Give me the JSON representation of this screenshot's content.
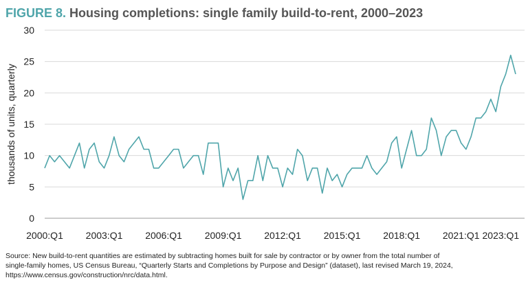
{
  "chart_data": {
    "type": "line",
    "title_label": "FIGURE 8.",
    "title": "Housing completions: single family build-to-rent, 2000–2023",
    "y_label": "thousands of units, quarterly",
    "source": [
      "Source: New build-to-rent quantities are estimated by subtracting homes built for sale by contractor or by owner from the total number of",
      "single-family homes, US Census Bureau, “Quarterly Starts and Completions by Purpose and Design” (dataset), last revised March 19, 2024,",
      "https://www.census.gov/construction/nrc/data.html."
    ],
    "categories": [
      "2000:Q1",
      null,
      null,
      null,
      null,
      null,
      null,
      null,
      null,
      null,
      null,
      null,
      "2003:Q1",
      null,
      null,
      null,
      null,
      null,
      null,
      null,
      null,
      null,
      null,
      null,
      "2006:Q1",
      null,
      null,
      null,
      null,
      null,
      null,
      null,
      null,
      null,
      null,
      null,
      "2009:Q1",
      null,
      null,
      null,
      null,
      null,
      null,
      null,
      null,
      null,
      null,
      null,
      "2012:Q1",
      null,
      null,
      null,
      null,
      null,
      null,
      null,
      null,
      null,
      null,
      null,
      "2015:Q1",
      null,
      null,
      null,
      null,
      null,
      null,
      null,
      null,
      null,
      null,
      null,
      "2018:Q1",
      null,
      null,
      null,
      null,
      null,
      null,
      null,
      null,
      null,
      null,
      null,
      "2021:Q1",
      null,
      null,
      null,
      null,
      null,
      null,
      null,
      "2023:Q1",
      null,
      null,
      null
    ],
    "series": [
      {
        "name": "Single family build-to-rent",
        "color": "#4fa5aa",
        "values": [
          8,
          10,
          9,
          10,
          9,
          8,
          10,
          12,
          8,
          11,
          12,
          9,
          8,
          10,
          13,
          10,
          9,
          11,
          12,
          13,
          11,
          11,
          8,
          8,
          9,
          10,
          11,
          11,
          8,
          9,
          10,
          10,
          7,
          12,
          12,
          12,
          5,
          8,
          6,
          8,
          3,
          6,
          6,
          10,
          6,
          10,
          8,
          8,
          5,
          8,
          7,
          11,
          10,
          6,
          8,
          8,
          4,
          8,
          6,
          7,
          5,
          7,
          8,
          8,
          8,
          10,
          8,
          7,
          8,
          9,
          12,
          13,
          8,
          11,
          14,
          10,
          10,
          11,
          16,
          14,
          10,
          13,
          14,
          14,
          12,
          11,
          13,
          16,
          16,
          17,
          19,
          17,
          21,
          23,
          26,
          23
        ]
      }
    ],
    "ylim": [
      0,
      30
    ],
    "yticks": [
      0,
      5,
      10,
      15,
      20,
      25,
      30
    ],
    "grid": true
  }
}
